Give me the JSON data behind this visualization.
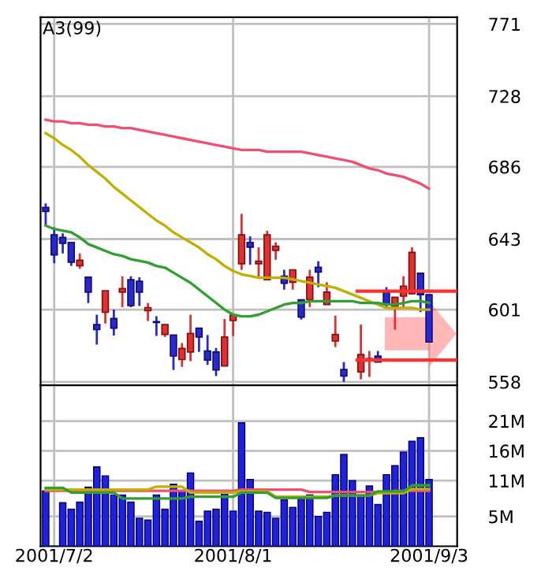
{
  "chart_data": [
    {
      "type": "candlestick",
      "title": "A3(99)",
      "tick_labels": "y",
      "grid": true,
      "categories": [
        null,
        "2001/7/2",
        null,
        null,
        null,
        null,
        null,
        null,
        null,
        null,
        null,
        null,
        null,
        null,
        null,
        null,
        null,
        null,
        null,
        null,
        null,
        null,
        "2001/8/1",
        null,
        null,
        null,
        null,
        null,
        null,
        null,
        null,
        null,
        null,
        null,
        null,
        null,
        null,
        null,
        null,
        null,
        null,
        null,
        null,
        null,
        null,
        "2001/9/3"
      ],
      "ohlc": [
        [
          661.8,
          664.2,
          650.6,
          659.5
        ],
        [
          645.5,
          650,
          628.6,
          633.6
        ],
        [
          644,
          646.4,
          634.5,
          640.5
        ],
        [
          641,
          641,
          627.1,
          629.2
        ],
        [
          627.1,
          634.5,
          625.3,
          630.4
        ],
        [
          620.3,
          620.3,
          604.9,
          611.4
        ],
        [
          592.1,
          598,
          580.2,
          589.1
        ],
        [
          599.5,
          612.3,
          592.7,
          612.3
        ],
        [
          595.7,
          601,
          585.6,
          590
        ],
        [
          611.4,
          620.9,
          602.5,
          613.5
        ],
        [
          618.8,
          620.9,
          602.5,
          603.4
        ],
        [
          617.9,
          620.3,
          603.1,
          611.4
        ],
        [
          600.4,
          604.9,
          594.2,
          602.2
        ],
        [
          593.9,
          597.1,
          585.3,
          593.3
        ],
        [
          586.2,
          592.1,
          584.7,
          592.1
        ],
        [
          585.9,
          585.9,
          565.1,
          573.4
        ],
        [
          571.3,
          581.1,
          566.9,
          577.9
        ],
        [
          575.8,
          598,
          570.4,
          586.8
        ],
        [
          590,
          590,
          575.8,
          584.7
        ],
        [
          576.4,
          585.9,
          568.1,
          571
        ],
        [
          575.8,
          578.2,
          561.5,
          565.1
        ],
        [
          567.5,
          595.4,
          567.5,
          584.7
        ],
        [
          594.5,
          597.7,
          585.3,
          597.7
        ],
        [
          628.3,
          658,
          624.7,
          645.5
        ],
        [
          641,
          644.6,
          627.7,
          638.1
        ],
        [
          628.3,
          638.1,
          620.3,
          629.8
        ],
        [
          618.8,
          647.9,
          618.8,
          645.5
        ],
        [
          636.3,
          641.1,
          630.7,
          638.7
        ],
        [
          620.9,
          624.7,
          612.9,
          616.7
        ],
        [
          617.3,
          624.7,
          612.9,
          624.7
        ],
        [
          606.9,
          606.9,
          595.1,
          596.5
        ],
        [
          606.9,
          624.7,
          602.5,
          620.3
        ],
        [
          626.2,
          629.8,
          614.4,
          623.3
        ],
        [
          604,
          617.3,
          604,
          611.4
        ],
        [
          582.3,
          597.4,
          578.7,
          586.2
        ],
        [
          565.4,
          569.8,
          558,
          561.5
        ],
        null,
        [
          563.9,
          592.1,
          559.5,
          574.3
        ],
        [
          571.6,
          576.4,
          561,
          571.9
        ],
        [
          573.4,
          576.4,
          569.8,
          569.8
        ],
        [
          611.4,
          614.4,
          602.5,
          604
        ],
        [
          603.1,
          608.4,
          589.1,
          608.4
        ],
        [
          609,
          620.9,
          602.5,
          615
        ],
        [
          610.5,
          638.1,
          609.9,
          635.1
        ],
        [
          622.7,
          622.7,
          599.5,
          609.9
        ],
        [
          609.9,
          609.9,
          581.7,
          581.7
        ]
      ],
      "colors": [
        "#2828d8",
        "#2828d8",
        "#2828d8",
        "#2828d8",
        "#e03030",
        "#2828d8",
        "#2828d8",
        "#e03030",
        "#2828d8",
        "#e03030",
        "#2828d8",
        "#2828d8",
        "#e03030",
        "#2828d8",
        "#e03030",
        "#2828d8",
        "#e03030",
        "#e03030",
        "#2828d8",
        "#2828d8",
        "#2828d8",
        "#e03030",
        "#e03030",
        "#e03030",
        "#2828d8",
        "#e03030",
        "#e03030",
        "#e03030",
        "#2828d8",
        "#e03030",
        "#2828d8",
        "#e03030",
        "#2828d8",
        "#e03030",
        "#e03030",
        "#2828d8",
        null,
        "#e03030",
        "#e03030",
        "#2828d8",
        "#2828d8",
        "#e03030",
        "#e03030",
        "#e03030",
        "#2828d8",
        "#2828d8"
      ],
      "series": [
        {
          "type": "line",
          "color": "#f05070",
          "values": [
            714,
            713,
            713,
            712,
            712,
            711,
            711,
            710,
            710,
            709,
            709,
            708,
            707,
            706,
            705,
            704,
            703,
            702,
            701,
            700,
            699,
            698,
            697,
            696,
            696,
            696,
            695,
            695,
            695,
            695,
            695,
            694,
            693,
            692,
            691,
            690,
            689,
            687,
            685,
            684,
            682,
            681,
            680,
            678,
            676,
            673
          ]
        },
        {
          "type": "line",
          "color": "#c0b000",
          "values": [
            706,
            703,
            699,
            696,
            692,
            687,
            683,
            679,
            674,
            670,
            666,
            662,
            658,
            654,
            651,
            647,
            644,
            641,
            638,
            634,
            631,
            627,
            624,
            622,
            621,
            620,
            620,
            620,
            620,
            619,
            618,
            617,
            616,
            615,
            614,
            612,
            610,
            608,
            606,
            604,
            602,
            602,
            602,
            602,
            601,
            601
          ]
        },
        {
          "type": "line",
          "color": "#30a030",
          "values": [
            651,
            649,
            648,
            647,
            644,
            640,
            638,
            636,
            634,
            633,
            631,
            630,
            629,
            627,
            626,
            623,
            620,
            617,
            613,
            609,
            605,
            601,
            598,
            597,
            597,
            598,
            600,
            602,
            604,
            605,
            605,
            606,
            606,
            606,
            606,
            606,
            606,
            605,
            605,
            605,
            604,
            604,
            605,
            606,
            606,
            605
          ]
        }
      ],
      "ylim": [
        556,
        775
      ],
      "yticks": [
        558,
        601,
        643,
        686,
        728,
        771
      ],
      "ref_lines": [
        {
          "axis": "y",
          "value": 612,
          "color": "#ff3030"
        },
        {
          "axis": "y",
          "value": 571,
          "color": "#ff3030"
        }
      ]
    },
    {
      "type": "bar",
      "grid": true,
      "categories": [
        null,
        "2001/7/2",
        null,
        null,
        null,
        null,
        null,
        null,
        null,
        null,
        null,
        null,
        null,
        null,
        null,
        null,
        null,
        null,
        null,
        null,
        null,
        null,
        "2001/8/1",
        null,
        null,
        null,
        null,
        null,
        null,
        null,
        null,
        null,
        null,
        null,
        null,
        null,
        null,
        null,
        null,
        null,
        null,
        null,
        null,
        null,
        null,
        "2001/9/3"
      ],
      "series": [
        {
          "type": "bar",
          "color": "#2020e0",
          "values": [
            9.3,
            null,
            7.3,
            6.2,
            7.4,
            9.9,
            13.3,
            11.8,
            8.6,
            8.6,
            7.4,
            4.7,
            4.4,
            8.6,
            6.2,
            10.4,
            9.3,
            12.3,
            4.2,
            5.9,
            6.2,
            9.0,
            5.9,
            20.7,
            11.2,
            5.9,
            5.7,
            4.7,
            7.8,
            6.5,
            8.0,
            8.6,
            5.0,
            5.7,
            12.0,
            15.4,
            11.0,
            8.6,
            10.1,
            7.0,
            12.0,
            13.5,
            15.8,
            17.6,
            18.2,
            11.2
          ]
        },
        {
          "type": "line",
          "color": "#f05070",
          "values": [
            9.3,
            9.3,
            9.3,
            9.3,
            9.3,
            9.3,
            9.3,
            9.3,
            9.3,
            9.3,
            9.3,
            9.3,
            9.3,
            9.3,
            9.3,
            9.3,
            9.3,
            9.3,
            9.3,
            9.3,
            9.3,
            9.3,
            9.3,
            9.5,
            9.5,
            9.5,
            9.5,
            9.5,
            9.5,
            9.5,
            9.5,
            9.1,
            9.1,
            9.1,
            9.1,
            9.1,
            9.1,
            9.1,
            9.1,
            9.1,
            9.1,
            9.3,
            9.3,
            9.3,
            9.3,
            9.3
          ]
        },
        {
          "type": "line",
          "color": "#c0b000",
          "values": [
            9.5,
            9.5,
            9.5,
            9.5,
            9.5,
            9.5,
            9.5,
            9.5,
            9.5,
            9.5,
            9.5,
            9.5,
            9.5,
            10.0,
            10.0,
            10.0,
            10.0,
            9.0,
            9.0,
            9.0,
            9.0,
            9.0,
            9.0,
            9.2,
            9.2,
            9.2,
            9.2,
            8.3,
            8.3,
            8.3,
            8.3,
            8.3,
            8.3,
            8.3,
            8.5,
            8.5,
            8.5,
            8.5,
            8.5,
            8.9,
            8.9,
            8.9,
            8.9,
            9.6,
            9.6,
            9.6
          ]
        },
        {
          "type": "line",
          "color": "#30a030",
          "values": [
            9.8,
            9.8,
            9.8,
            9.0,
            9.0,
            9.0,
            9.0,
            9.0,
            9.0,
            8.0,
            8.0,
            8.0,
            8.0,
            8.0,
            8.0,
            8.0,
            8.0,
            8.3,
            8.3,
            8.3,
            8.3,
            8.3,
            8.3,
            9.0,
            9.0,
            9.0,
            9.0,
            8.1,
            8.1,
            8.1,
            8.1,
            8.1,
            8.1,
            8.1,
            8.5,
            8.5,
            8.5,
            8.5,
            8.5,
            9.2,
            9.2,
            9.2,
            9.2,
            10.2,
            10.2,
            10.2
          ]
        }
      ],
      "ylim": [
        0,
        27
      ],
      "yticks": [
        {
          "value": 5,
          "label": "5M"
        },
        {
          "value": 11,
          "label": "11M"
        },
        {
          "value": 16,
          "label": "16M"
        },
        {
          "value": 21,
          "label": "21M"
        }
      ]
    }
  ]
}
